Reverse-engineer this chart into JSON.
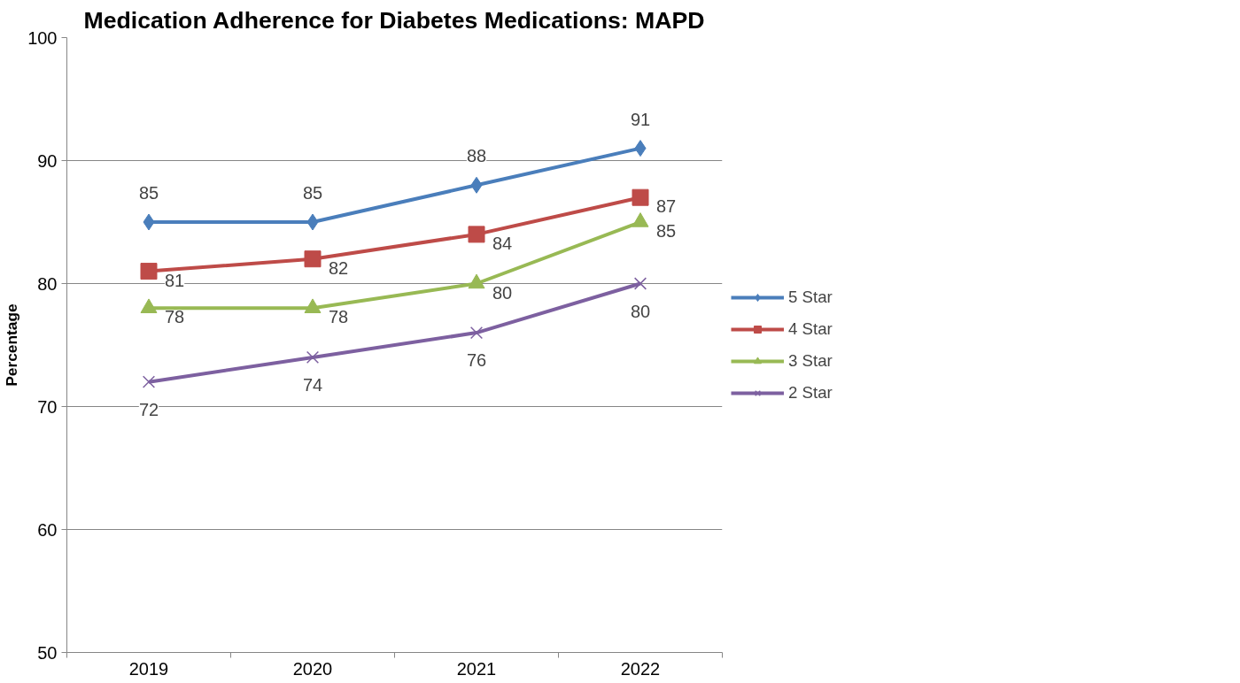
{
  "chart_data": {
    "type": "line",
    "title": "Medication Adherence for Diabetes Medications: MAPD",
    "ylabel": "Percentage",
    "categories": [
      "2019",
      "2020",
      "2021",
      "2022"
    ],
    "series": [
      {
        "name": "5 Star",
        "color": "#4a7ebb",
        "marker": "diamond",
        "values": [
          85,
          85,
          88,
          91
        ]
      },
      {
        "name": "4 Star",
        "color": "#be4b48",
        "marker": "square",
        "values": [
          81,
          82,
          84,
          87
        ]
      },
      {
        "name": "3 Star",
        "color": "#98b954",
        "marker": "triangle",
        "values": [
          78,
          78,
          80,
          85
        ]
      },
      {
        "name": "2 Star",
        "color": "#7d60a0",
        "marker": "cross",
        "values": [
          72,
          74,
          76,
          80
        ]
      }
    ],
    "ylim": [
      50,
      100
    ],
    "yticks": [
      50,
      60,
      70,
      80,
      90,
      100
    ],
    "grid": "y",
    "legend": "right",
    "data_labels": true,
    "line_style": "solid"
  }
}
